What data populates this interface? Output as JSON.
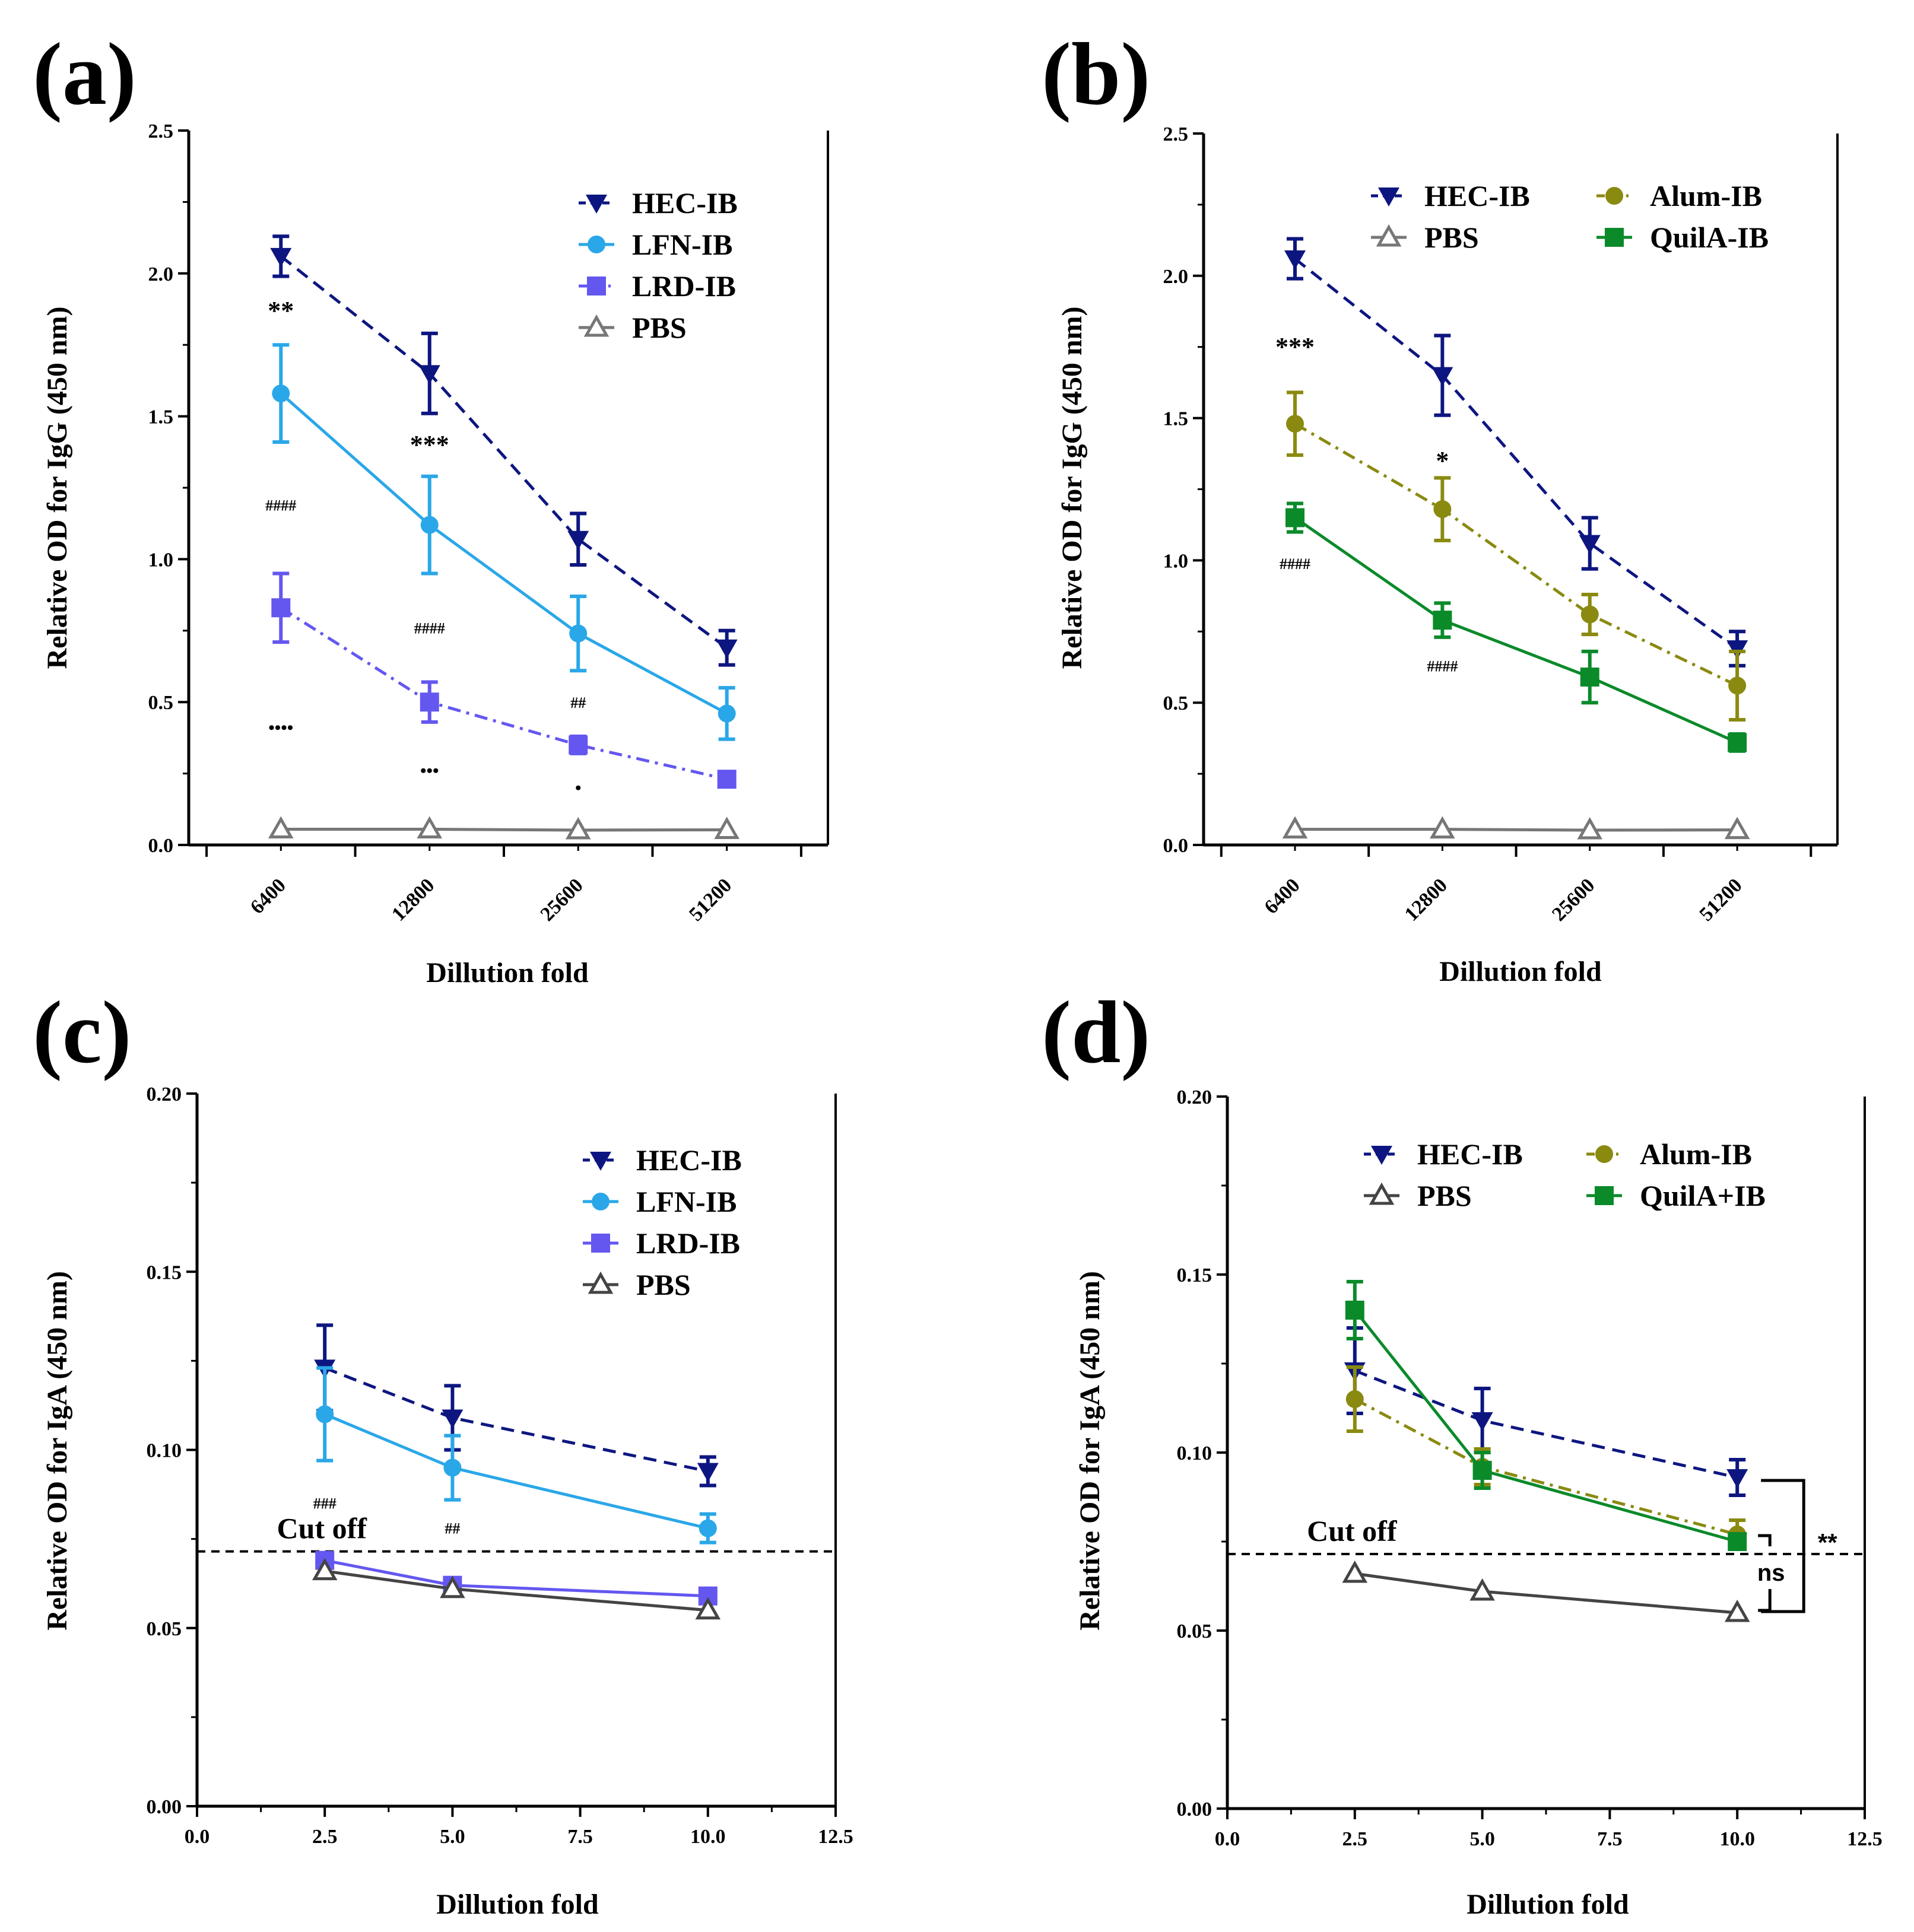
{
  "chart_data": [
    {
      "panel": "(a)",
      "type": "line",
      "xscale": "categorical",
      "categories": [
        "6400",
        "12800",
        "25600",
        "51200"
      ],
      "xlabel": "Dillution fold",
      "ylabel": "Relative OD for IgG (450 nm)",
      "ylim": [
        0,
        2.5
      ],
      "yticks": [
        "0.0",
        "0.5",
        "1.0",
        "1.5",
        "2.0",
        "2.5"
      ],
      "series": [
        {
          "name": "HEC-IB",
          "color": "#0d1680",
          "dash": "dashed",
          "marker": "tri-down",
          "values": [
            2.06,
            1.65,
            1.07,
            0.69
          ],
          "errors": [
            0.07,
            0.14,
            0.09,
            0.06
          ]
        },
        {
          "name": "LFN-IB",
          "color": "#2aa7e8",
          "dash": "solid",
          "marker": "circle",
          "values": [
            1.58,
            1.12,
            0.74,
            0.46
          ],
          "errors": [
            0.17,
            0.17,
            0.13,
            0.09
          ]
        },
        {
          "name": "LRD-IB",
          "color": "#6457f0",
          "dash": "dashdot",
          "marker": "square",
          "values": [
            0.83,
            0.5,
            0.35,
            0.23
          ],
          "errors": [
            0.12,
            0.07,
            0.03,
            0.02
          ]
        },
        {
          "name": "PBS",
          "color": "#777777",
          "dash": "solid",
          "marker": "tri-up-open",
          "values": [
            0.055,
            0.055,
            0.052,
            0.053
          ],
          "errors": [
            0,
            0,
            0,
            0
          ]
        }
      ],
      "annotations": [
        {
          "text": "**",
          "x": 0,
          "y": 1.84,
          "size": "big"
        },
        {
          "text": "####",
          "x": 0,
          "y": 1.17,
          "size": "small"
        },
        {
          "text": "••••",
          "x": 0,
          "y": 0.39,
          "size": "dots"
        },
        {
          "text": "***",
          "x": 1,
          "y": 1.37,
          "size": "big"
        },
        {
          "text": "####",
          "x": 1,
          "y": 0.74,
          "size": "small"
        },
        {
          "text": "•••",
          "x": 1,
          "y": 0.24,
          "size": "dots"
        },
        {
          "text": "##",
          "x": 2,
          "y": 0.48,
          "size": "small"
        },
        {
          "text": "•",
          "x": 2,
          "y": 0.18,
          "size": "dots"
        }
      ],
      "legend": {
        "position": "top-right",
        "columns": 1,
        "entries": [
          "HEC-IB",
          "LFN-IB",
          "LRD-IB",
          "PBS"
        ]
      }
    },
    {
      "panel": "(b)",
      "type": "line",
      "xscale": "categorical",
      "categories": [
        "6400",
        "12800",
        "25600",
        "51200"
      ],
      "xlabel": "Dillution fold",
      "ylabel": "Relative OD for IgG (450 nm)",
      "ylim": [
        0,
        2.5
      ],
      "yticks": [
        "0.0",
        "0.5",
        "1.0",
        "1.5",
        "2.0",
        "2.5"
      ],
      "series": [
        {
          "name": "HEC-IB",
          "color": "#0d1680",
          "dash": "dashed",
          "marker": "tri-down",
          "values": [
            2.06,
            1.65,
            1.06,
            0.69
          ],
          "errors": [
            0.07,
            0.14,
            0.09,
            0.06
          ]
        },
        {
          "name": "PBS",
          "color": "#777777",
          "dash": "solid",
          "marker": "tri-up-open",
          "values": [
            0.055,
            0.055,
            0.052,
            0.053
          ],
          "errors": [
            0,
            0,
            0,
            0
          ]
        },
        {
          "name": "Alum-IB",
          "color": "#8a8a10",
          "dash": "dashdot",
          "marker": "circle",
          "values": [
            1.48,
            1.18,
            0.81,
            0.56
          ],
          "errors": [
            0.11,
            0.11,
            0.07,
            0.12
          ]
        },
        {
          "name": "QuilA-IB",
          "color": "#0b8a2a",
          "dash": "solid",
          "marker": "square",
          "values": [
            1.15,
            0.79,
            0.59,
            0.36
          ],
          "errors": [
            0.05,
            0.06,
            0.09,
            0.03
          ]
        }
      ],
      "annotations": [
        {
          "text": "***",
          "x": 0,
          "y": 1.72,
          "size": "big"
        },
        {
          "text": "####",
          "x": 0,
          "y": 0.97,
          "size": "small"
        },
        {
          "text": "*",
          "x": 1,
          "y": 1.32,
          "size": "big"
        },
        {
          "text": "####",
          "x": 1,
          "y": 0.61,
          "size": "small"
        }
      ],
      "legend": {
        "position": "top-right",
        "columns": 2,
        "entries": [
          "HEC-IB",
          "PBS",
          "Alum-IB",
          "QuilA-IB"
        ]
      }
    },
    {
      "panel": "(c)",
      "type": "line",
      "xscale": "linear",
      "xlim": [
        0,
        12.5
      ],
      "xticks": [
        "0.0",
        "2.5",
        "5.0",
        "7.5",
        "10.0",
        "12.5"
      ],
      "x": [
        2.5,
        5,
        10
      ],
      "xlabel": "Dillution fold",
      "ylabel": "Relative OD for IgA (450 nm)",
      "ylim": [
        0,
        0.2
      ],
      "yticks": [
        "0.00",
        "0.05",
        "0.10",
        "0.15",
        "0.20"
      ],
      "cutoff": {
        "y": 0.0715,
        "label": "Cut off"
      },
      "series": [
        {
          "name": "HEC-IB",
          "color": "#0d1680",
          "dash": "dashed",
          "marker": "tri-down",
          "values": [
            0.123,
            0.109,
            0.094
          ],
          "errors": [
            0.012,
            0.009,
            0.004
          ]
        },
        {
          "name": "LFN-IB",
          "color": "#2aa7e8",
          "dash": "solid",
          "marker": "circle",
          "values": [
            0.11,
            0.095,
            0.078
          ],
          "errors": [
            0.013,
            0.009,
            0.004
          ]
        },
        {
          "name": "LRD-IB",
          "color": "#6457f0",
          "dash": "solid",
          "marker": "square",
          "values": [
            0.069,
            0.062,
            0.059
          ],
          "errors": [
            0.002,
            0.001,
            0.001
          ]
        },
        {
          "name": "PBS",
          "color": "#444444",
          "dash": "solid",
          "marker": "tri-up-open",
          "values": [
            0.066,
            0.061,
            0.055
          ],
          "errors": [
            0,
            0,
            0
          ]
        }
      ],
      "annotations": [
        {
          "text": "###",
          "x": 2.5,
          "y": 0.0835,
          "size": "small"
        },
        {
          "text": "##",
          "x": 5,
          "y": 0.0765,
          "size": "small"
        }
      ],
      "legend": {
        "position": "top-right",
        "columns": 1,
        "entries": [
          "HEC-IB",
          "LFN-IB",
          "LRD-IB",
          "PBS"
        ]
      }
    },
    {
      "panel": "(d)",
      "type": "line",
      "xscale": "linear",
      "xlim": [
        0,
        12.5
      ],
      "xticks": [
        "0.0",
        "2.5",
        "5.0",
        "7.5",
        "10.0",
        "12.5"
      ],
      "x": [
        2.5,
        5,
        10
      ],
      "xlabel": "Dillution fold",
      "ylabel": "Relative OD for IgA (450 nm)",
      "ylim": [
        0,
        0.2
      ],
      "yticks": [
        "0.00",
        "0.05",
        "0.10",
        "0.15",
        "0.20"
      ],
      "cutoff": {
        "y": 0.0715,
        "label": "Cut off"
      },
      "series": [
        {
          "name": "HEC-IB",
          "color": "#0d1680",
          "dash": "dashed",
          "marker": "tri-down",
          "values": [
            0.123,
            0.109,
            0.093
          ],
          "errors": [
            0.012,
            0.009,
            0.005
          ]
        },
        {
          "name": "PBS",
          "color": "#444444",
          "dash": "solid",
          "marker": "tri-up-open",
          "values": [
            0.066,
            0.061,
            0.055
          ],
          "errors": [
            0,
            0,
            0
          ]
        },
        {
          "name": "Alum-IB",
          "color": "#8a8a10",
          "dash": "dashdot",
          "marker": "circle",
          "values": [
            0.115,
            0.096,
            0.077
          ],
          "errors": [
            0.009,
            0.005,
            0.004
          ]
        },
        {
          "name": "QuilA+IB",
          "color": "#0b8a2a",
          "dash": "solid",
          "marker": "square",
          "values": [
            0.14,
            0.095,
            0.075
          ],
          "errors": [
            0.008,
            0.005,
            0.002
          ]
        }
      ],
      "brackets": [
        {
          "text": "**",
          "y_top": 0.093,
          "y_bottom": 0.055
        },
        {
          "text": "ns",
          "y_top": 0.077,
          "y_bottom": 0.055
        }
      ],
      "legend": {
        "position": "top-right",
        "columns": 2,
        "entries": [
          "HEC-IB",
          "PBS",
          "Alum-IB",
          "QuilA+IB"
        ]
      }
    }
  ]
}
